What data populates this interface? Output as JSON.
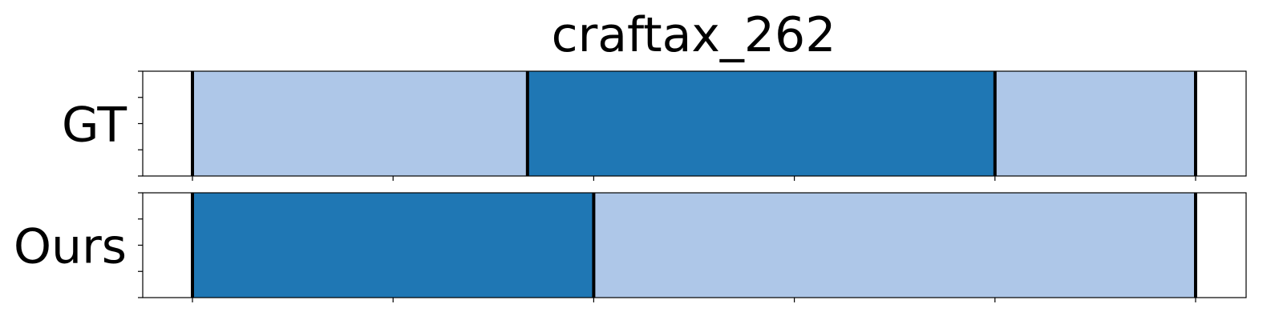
{
  "chart_data": {
    "type": "bar",
    "title": "craftax_262",
    "orientation": "horizontal-segments",
    "x_range": [
      0,
      525
    ],
    "x_ticks": [
      25,
      125,
      225,
      325,
      425,
      525
    ],
    "colors": {
      "light": "#aec7e8",
      "dark": "#1f77b4",
      "boundary": "#000000"
    },
    "rows": [
      {
        "label": "GT",
        "segments": [
          {
            "start": 0,
            "end": 167,
            "color": "light"
          },
          {
            "start": 167,
            "end": 400,
            "color": "dark"
          },
          {
            "start": 400,
            "end": 500,
            "color": "light"
          }
        ]
      },
      {
        "label": "Ours",
        "segments": [
          {
            "start": 0,
            "end": 200,
            "color": "dark"
          },
          {
            "start": 200,
            "end": 500,
            "color": "light"
          }
        ]
      }
    ]
  }
}
